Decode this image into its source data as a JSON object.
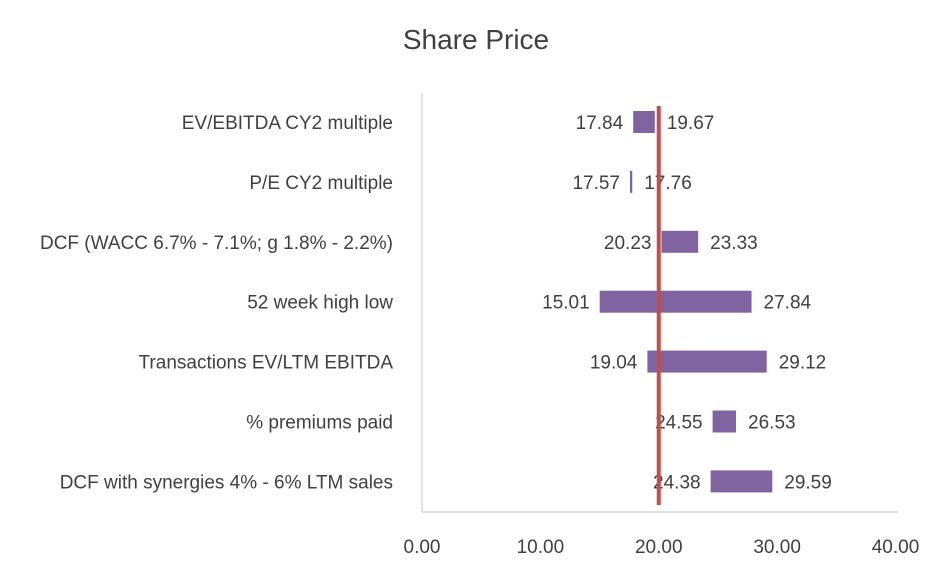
{
  "chart_data": {
    "type": "bar",
    "subtype": "floating-range-bar",
    "title": "Share Price",
    "categories": [
      "EV/EBITDA CY2 multiple",
      "P/E CY2 multiple",
      "DCF (WACC 6.7% - 7.1%; g 1.8% - 2.2%)",
      "52 week high low",
      "Transactions EV/LTM EBITDA",
      "% premiums paid",
      "DCF with synergies 4% - 6% LTM sales"
    ],
    "low": [
      17.84,
      17.57,
      20.23,
      15.01,
      19.04,
      24.55,
      24.38
    ],
    "high": [
      19.67,
      17.76,
      23.33,
      27.84,
      29.12,
      26.53,
      29.59
    ],
    "low_labels": [
      "17.84",
      "17.57",
      "20.23",
      "15.01",
      "19.04",
      "24.55",
      "24.38"
    ],
    "high_labels": [
      "19.67",
      "17.76",
      "23.33",
      "27.84",
      "29.12",
      "26.53",
      "29.59"
    ],
    "reference_line": 20.0,
    "xlim": [
      0,
      40
    ],
    "x_ticks": [
      0,
      10,
      20,
      30,
      40
    ],
    "x_tick_labels": [
      "0.00",
      "10.00",
      "20.00",
      "30.00",
      "40.00"
    ],
    "grid": false,
    "legend": "none",
    "colors": {
      "bar": "#8064A2",
      "reference_line": "#C0504D",
      "axis": "#D9D9D9",
      "text": "#404040"
    }
  }
}
